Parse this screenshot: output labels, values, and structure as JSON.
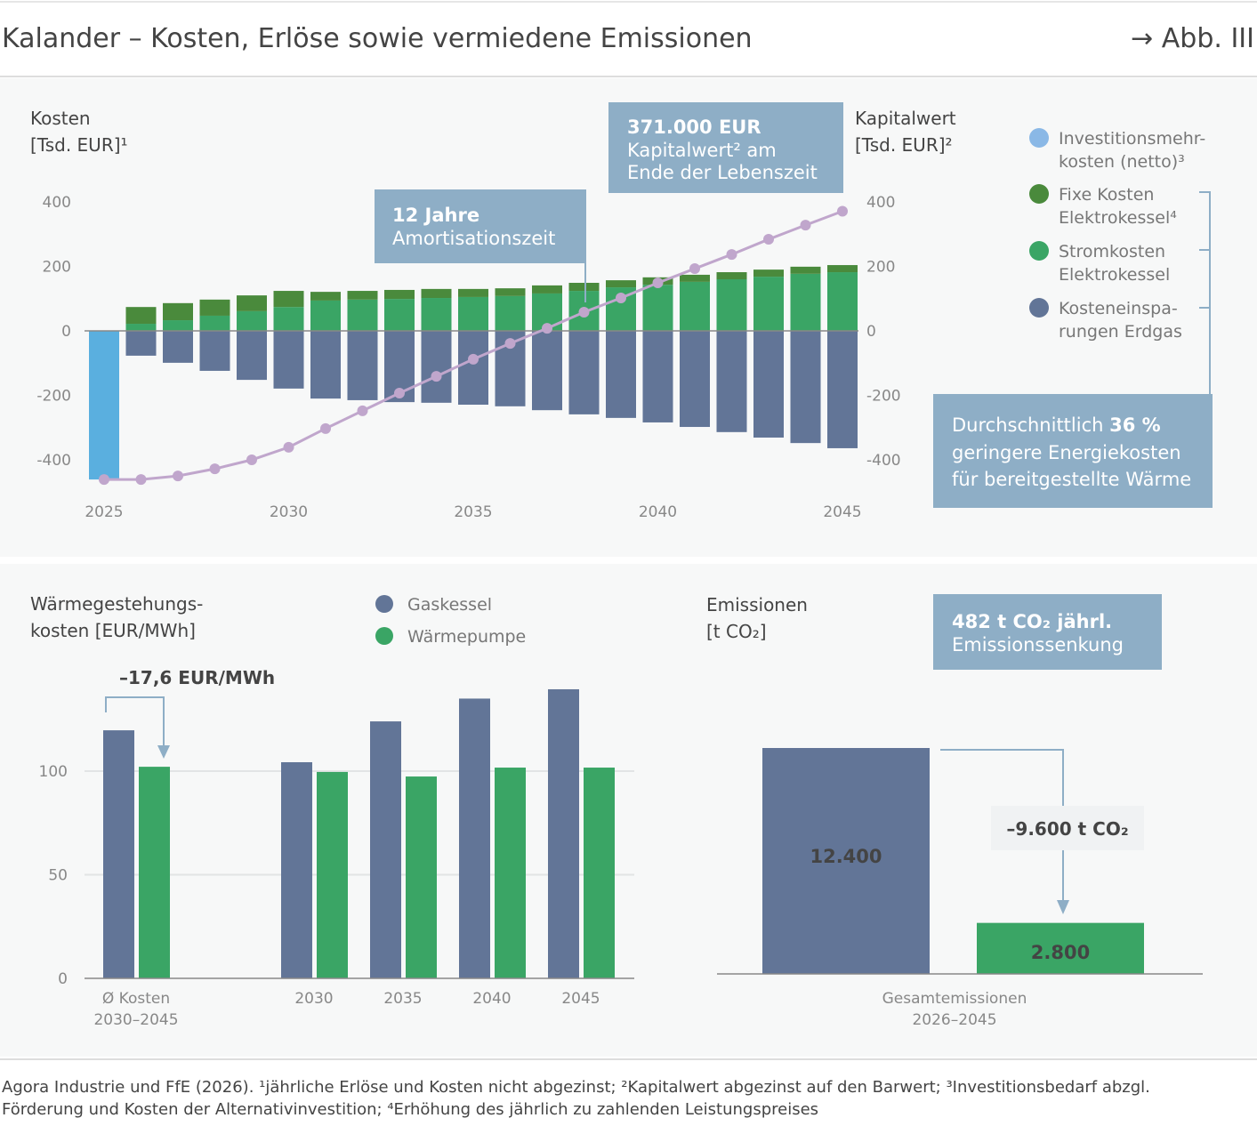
{
  "header": {
    "title": "Kalander – Kosten, Erlöse sowie vermiedene Emissionen",
    "figure_ref": "→ Abb. III"
  },
  "colors": {
    "investment": "#5aafdf",
    "fixed": "#4a8a3c",
    "electricity": "#3aa565",
    "savings": "#627597",
    "npv_line": "#c0a6cc",
    "callout": "#8eaec6",
    "gas": "#627597",
    "heatpump": "#3aa565"
  },
  "chart_data": [
    {
      "type": "bar+line",
      "ylabel_left": [
        "Kosten",
        "[Tsd. EUR]¹"
      ],
      "ylabel_right": [
        "Kapitalwert",
        "[Tsd. EUR]²"
      ],
      "ylim": [
        -460,
        400
      ],
      "yticks": [
        "400",
        "200",
        "0",
        "-200",
        "-400"
      ],
      "xticks": [
        "2025",
        "2030",
        "2035",
        "2040",
        "2045"
      ],
      "years": [
        2025,
        2026,
        2027,
        2028,
        2029,
        2030,
        2031,
        2032,
        2033,
        2034,
        2035,
        2036,
        2037,
        2038,
        2039,
        2040,
        2041,
        2042,
        2043,
        2044,
        2045
      ],
      "legend": [
        {
          "key": "investment",
          "label": [
            "Investitionsmehr-",
            "kosten (netto)³"
          ]
        },
        {
          "key": "fixed",
          "label": [
            "Fixe Kosten",
            "Elektrokessel⁴"
          ]
        },
        {
          "key": "electricity",
          "label": [
            "Stromkosten",
            "Elektrokessel"
          ]
        },
        {
          "key": "savings",
          "label": [
            "Kosteneinspa-",
            "rungen Erdgas"
          ]
        }
      ],
      "series": {
        "investment": [
          -461,
          0,
          0,
          0,
          0,
          0,
          0,
          0,
          0,
          0,
          0,
          0,
          0,
          0,
          0,
          0,
          0,
          0,
          0,
          0,
          0
        ],
        "electricity": [
          0,
          22,
          33,
          47,
          61,
          74,
          94,
          97,
          99,
          102,
          105,
          108,
          116,
          124,
          135,
          143,
          152,
          160,
          168,
          177,
          182
        ],
        "fixed": [
          0,
          52,
          53,
          50,
          49,
          50,
          27,
          27,
          28,
          28,
          25,
          24,
          25,
          25,
          22,
          23,
          22,
          22,
          22,
          22,
          22
        ],
        "savings": [
          0,
          -77,
          -99,
          -124,
          -152,
          -179,
          -210,
          -215,
          -221,
          -223,
          -229,
          -234,
          -246,
          -259,
          -270,
          -284,
          -298,
          -314,
          -331,
          -348,
          -364
        ],
        "npv": [
          -461,
          -461,
          -450,
          -428,
          -400,
          -361,
          -303,
          -248,
          -193,
          -141,
          -88,
          -39,
          8,
          58,
          102,
          149,
          193,
          237,
          284,
          328,
          371
        ]
      },
      "annotations": {
        "payback": [
          "12 Jahre",
          "Amortisationszeit"
        ],
        "npv": [
          "371.000 EUR",
          "Kapitalwert² am",
          "Ende der Lebenszeit"
        ],
        "energy": [
          "Durchschnittlich ",
          "36 %",
          "geringere Energiekosten",
          "für bereitgestellte Wärme"
        ]
      }
    },
    {
      "type": "bar",
      "ylabel": [
        "Wärmegestehungs-",
        "kosten [EUR/MWh]"
      ],
      "yticks": [
        "100",
        "50",
        "0"
      ],
      "ylim": [
        0,
        145
      ],
      "categories": [
        [
          "Ø Kosten",
          "2030–2045"
        ],
        [
          "2030"
        ],
        [
          "2035"
        ],
        [
          "2040"
        ],
        [
          "2045"
        ]
      ],
      "series": [
        {
          "name": "Gaskessel",
          "values": [
            119.7,
            104.3,
            124.0,
            135.0,
            139.5
          ]
        },
        {
          "name": "Wärmepumpe",
          "values": [
            102.1,
            99.6,
            97.4,
            101.7,
            101.7
          ]
        }
      ],
      "annotation": "–17,6 EUR/MWh"
    },
    {
      "type": "bar",
      "ylabel": [
        "Emissionen",
        "[t CO₂]"
      ],
      "category": [
        "Gesamtemissionen",
        "2026–2045"
      ],
      "values": [
        12400,
        2800
      ],
      "value_labels": [
        "12.400",
        "2.800"
      ],
      "annotation": "–9.600 t CO₂",
      "callout": [
        "482 t CO₂ jährl.",
        "Emissionssenkung"
      ]
    }
  ],
  "footer": [
    "Agora Industrie und FfE (2026). ¹jährliche Erlöse und Kosten nicht abgezinst; ²Kapitalwert abgezinst auf den Barwert; ³Investitionsbedarf abzgl.",
    "Förderung und Kosten der Alternativinvestition; ⁴Erhöhung des jährlich zu zahlenden Leistungspreises"
  ]
}
